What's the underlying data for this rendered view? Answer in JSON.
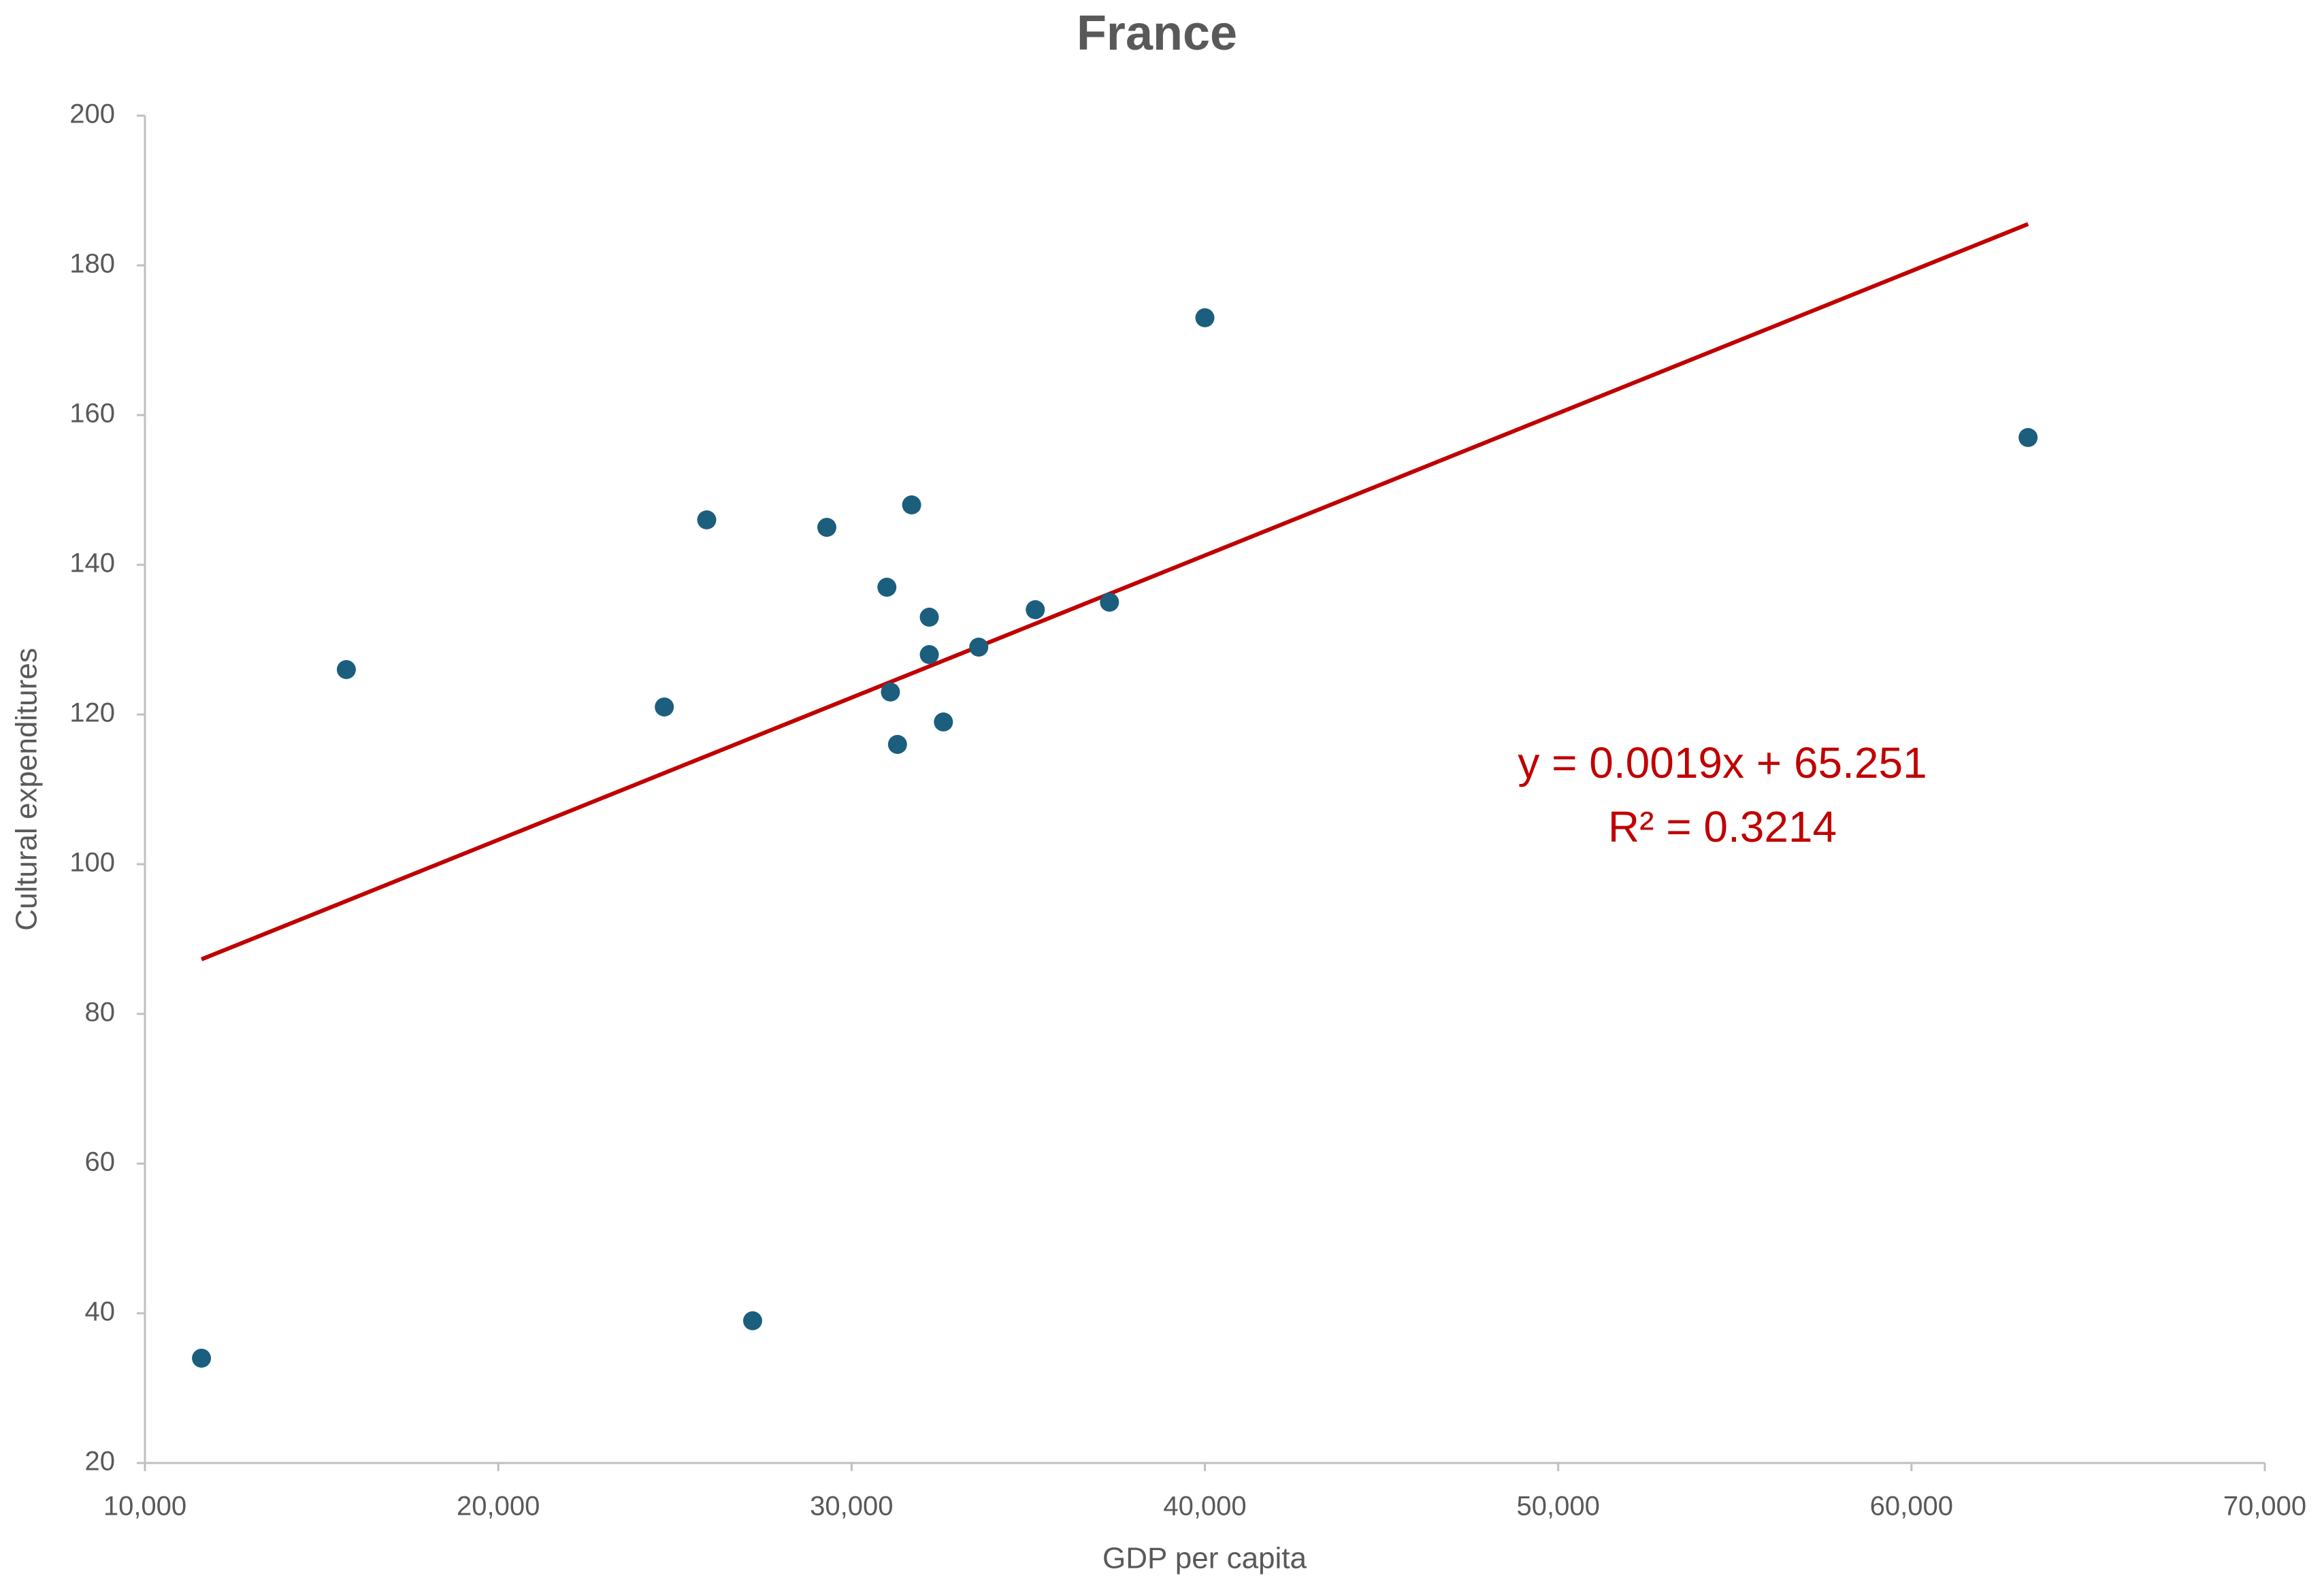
{
  "chart_data": {
    "type": "scatter",
    "title": "France",
    "x_label": "GDP per capita",
    "y_label": "Cultural expenditures",
    "x": [
      11600,
      15700,
      24700,
      25900,
      27200,
      29300,
      31000,
      31100,
      31300,
      31700,
      32200,
      32200,
      32600,
      33600,
      35200,
      37300,
      40000,
      63300
    ],
    "values": [
      34,
      126,
      121,
      146,
      39,
      145,
      137,
      123,
      116,
      148,
      128,
      133,
      119,
      129,
      134,
      135,
      173,
      157
    ],
    "color": "#1b5e7e",
    "xlim": [
      10000,
      70000
    ],
    "xticks": [
      {
        "value": 10000,
        "label": "10,000"
      },
      {
        "value": 20000,
        "label": "20,000"
      },
      {
        "value": 30000,
        "label": "30,000"
      },
      {
        "value": 40000,
        "label": "40,000"
      },
      {
        "value": 50000,
        "label": "50,000"
      },
      {
        "value": 60000,
        "label": "60,000"
      },
      {
        "value": 70000,
        "label": "70,000"
      }
    ],
    "ylim": [
      20,
      200
    ],
    "yticks": [
      20,
      40,
      60,
      80,
      100,
      120,
      140,
      160,
      180,
      200
    ],
    "grid": false,
    "trendline": {
      "slope": 0.0019,
      "intercept": 65.251,
      "color": "#c00000"
    },
    "annotations": [
      "y = 0.0019x + 65.251",
      "R² = 0.3214"
    ]
  }
}
